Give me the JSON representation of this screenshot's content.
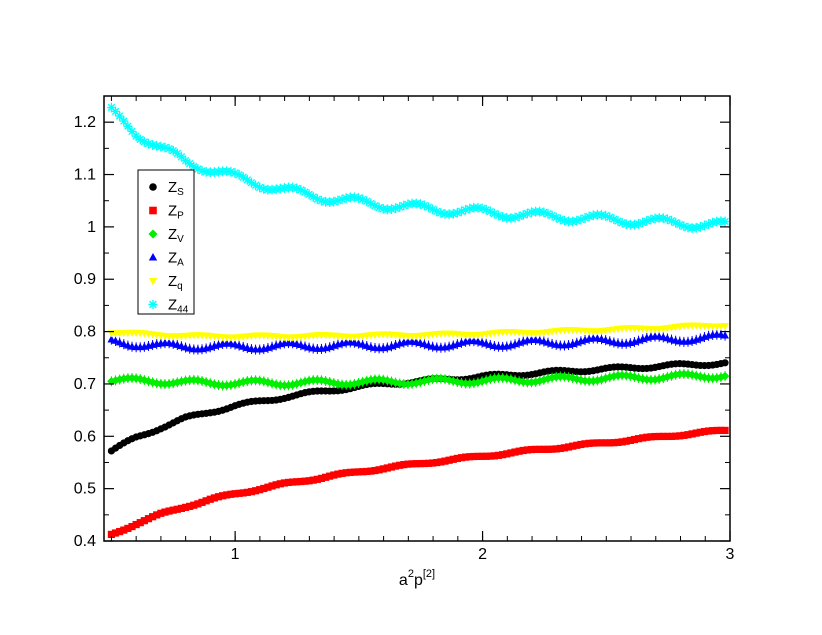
{
  "chart_data": {
    "type": "scatter",
    "title": "",
    "xlabel": "a",
    "xlabel_sup1": "2",
    "xlabel_mid": "p",
    "xlabel_sup2": "[2]",
    "ylabel": "",
    "xlim": [
      0.47,
      3.0
    ],
    "ylim": [
      0.4,
      1.25
    ],
    "grid": false,
    "legend_placement": "upper-left",
    "x_ticks": [
      {
        "value": 1,
        "label": "1"
      },
      {
        "value": 2,
        "label": "2"
      },
      {
        "value": 3,
        "label": "3"
      }
    ],
    "y_ticks": [
      {
        "value": 0.4,
        "label": "0.4"
      },
      {
        "value": 0.5,
        "label": "0.5"
      },
      {
        "value": 0.6,
        "label": "0.6"
      },
      {
        "value": 0.7,
        "label": "0.7"
      },
      {
        "value": 0.8,
        "label": "0.8"
      },
      {
        "value": 0.9,
        "label": "0.9"
      },
      {
        "value": 1.0,
        "label": "1"
      },
      {
        "value": 1.1,
        "label": "1.1"
      },
      {
        "value": 1.2,
        "label": "1.2"
      }
    ],
    "x": [
      0.5,
      0.6,
      0.7,
      0.8,
      0.9,
      1.0,
      1.2,
      1.4,
      1.6,
      1.8,
      2.0,
      2.2,
      2.4,
      2.6,
      2.8,
      3.0
    ],
    "series": [
      {
        "name": "Z",
        "sub": "S",
        "color": "#000000",
        "marker": "circle",
        "values": [
          0.572,
          0.597,
          0.617,
          0.634,
          0.647,
          0.658,
          0.675,
          0.689,
          0.7,
          0.707,
          0.714,
          0.72,
          0.726,
          0.731,
          0.736,
          0.74
        ]
      },
      {
        "name": "Z",
        "sub": "P",
        "color": "#ff0000",
        "marker": "square",
        "values": [
          0.412,
          0.433,
          0.451,
          0.466,
          0.479,
          0.49,
          0.509,
          0.525,
          0.539,
          0.551,
          0.562,
          0.573,
          0.583,
          0.593,
          0.603,
          0.612
        ]
      },
      {
        "name": "Z",
        "sub": "V",
        "color": "#00ee00",
        "marker": "diamond",
        "values": [
          0.708,
          0.706,
          0.705,
          0.703,
          0.702,
          0.702,
          0.702,
          0.703,
          0.704,
          0.705,
          0.706,
          0.708,
          0.71,
          0.712,
          0.714,
          0.717
        ]
      },
      {
        "name": "Z",
        "sub": "A",
        "color": "#0000ff",
        "marker": "triangle-up",
        "values": [
          0.78,
          0.776,
          0.772,
          0.772,
          0.771,
          0.771,
          0.772,
          0.773,
          0.774,
          0.775,
          0.776,
          0.778,
          0.78,
          0.783,
          0.786,
          0.789
        ]
      },
      {
        "name": "Z",
        "sub": "q",
        "color": "#ffff00",
        "marker": "triangle-down",
        "values": [
          0.799,
          0.796,
          0.794,
          0.792,
          0.791,
          0.791,
          0.791,
          0.792,
          0.793,
          0.794,
          0.796,
          0.799,
          0.802,
          0.805,
          0.809,
          0.813
        ]
      },
      {
        "name": "Z",
        "sub": "44",
        "color": "#00ffff",
        "marker": "star",
        "values": [
          1.22,
          1.18,
          1.15,
          1.125,
          1.11,
          1.095,
          1.07,
          1.053,
          1.042,
          1.034,
          1.028,
          1.022,
          1.017,
          1.012,
          1.007,
          1.002
        ]
      }
    ]
  }
}
